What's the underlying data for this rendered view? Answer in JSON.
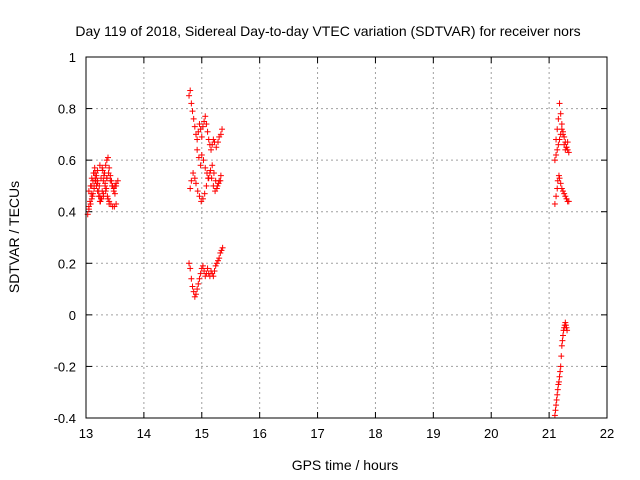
{
  "chart_data": {
    "type": "scatter",
    "title": "Day 119 of 2018, Sidereal Day-to-day VTEC variation (SDTVAR) for receiver nors",
    "xlabel": "GPS time / hours",
    "ylabel": "SDTVAR / TECUs",
    "xlim": [
      13,
      22
    ],
    "ylim": [
      -0.4,
      1
    ],
    "xticks": [
      "13",
      "14",
      "15",
      "16",
      "17",
      "18",
      "19",
      "20",
      "21",
      "22"
    ],
    "yticks": [
      "-0.4",
      "-0.2",
      "0",
      "0.2",
      "0.4",
      "0.6",
      "0.8",
      "1"
    ],
    "grid": true,
    "marker": "+",
    "color": "#ff0000",
    "series": [
      {
        "name": "SDTVAR",
        "x": [
          13.03,
          13.05,
          13.07,
          13.09,
          13.1,
          13.12,
          13.14,
          13.16,
          13.18,
          13.2,
          13.22,
          13.24,
          13.26,
          13.28,
          13.3,
          13.32,
          13.34,
          13.36,
          13.38,
          13.4,
          13.42,
          13.44,
          13.46,
          13.48,
          13.5,
          13.52,
          13.55,
          13.05,
          13.08,
          13.1,
          13.13,
          13.15,
          13.17,
          13.2,
          13.23,
          13.26,
          13.29,
          13.31,
          13.33,
          13.35,
          13.37,
          13.4,
          13.43,
          13.46,
          13.49,
          13.52,
          13.1,
          13.12,
          13.14,
          13.16,
          13.18,
          13.2,
          13.22,
          13.24,
          13.27,
          13.3,
          13.33,
          13.36,
          13.39,
          13.42,
          13.45,
          13.48,
          13.5,
          13.52,
          13.2,
          13.24,
          13.28,
          13.32,
          13.36,
          13.25,
          13.3,
          13.34,
          13.38,
          13.4,
          13.05,
          13.08,
          13.11,
          13.14,
          13.17,
          14.78,
          14.8,
          14.82,
          14.84,
          14.86,
          14.88,
          14.9,
          14.92,
          14.94,
          14.96,
          14.98,
          15.0,
          15.02,
          15.04,
          15.06,
          15.08,
          15.1,
          15.12,
          15.14,
          15.16,
          15.18,
          15.2,
          15.22,
          15.25,
          15.28,
          15.3,
          15.33,
          15.35,
          14.92,
          14.95,
          14.98,
          15.0,
          15.03,
          15.06,
          15.09,
          15.12,
          15.15,
          15.18,
          15.21,
          15.24,
          15.27,
          15.3,
          15.33,
          14.8,
          14.82,
          14.85,
          14.88,
          14.9,
          14.93,
          14.96,
          14.99,
          15.02,
          15.05,
          15.08,
          15.11,
          15.14,
          15.17,
          15.2,
          15.23,
          15.26,
          15.29,
          15.32,
          14.78,
          14.8,
          14.82,
          14.84,
          14.86,
          14.88,
          14.9,
          14.92,
          14.94,
          14.96,
          14.98,
          15.0,
          15.02,
          15.04,
          15.06,
          15.08,
          15.1,
          15.12,
          15.14,
          15.16,
          15.18,
          15.2,
          15.22,
          15.24,
          15.26,
          15.28,
          15.3,
          15.32,
          15.34,
          15.36,
          21.1,
          21.12,
          21.14,
          21.15,
          21.17,
          21.18,
          21.2,
          21.22,
          21.24,
          21.26,
          21.28,
          21.3,
          21.32,
          21.34,
          21.12,
          21.14,
          21.16,
          21.18,
          21.2,
          21.22,
          21.24,
          21.26,
          21.28,
          21.3,
          21.32,
          21.1,
          21.12,
          21.14,
          21.16,
          21.18,
          21.2,
          21.22,
          21.24,
          21.26,
          21.28,
          21.3,
          21.32,
          21.34,
          21.1,
          21.11,
          21.12,
          21.13,
          21.14,
          21.15,
          21.16,
          21.17,
          21.18,
          21.19,
          21.2,
          21.21,
          21.22,
          21.23,
          21.24,
          21.25,
          21.26,
          21.27,
          21.28,
          21.29,
          21.3,
          21.31
        ],
        "y": [
          0.39,
          0.42,
          0.44,
          0.47,
          0.5,
          0.52,
          0.55,
          0.53,
          0.5,
          0.48,
          0.46,
          0.44,
          0.45,
          0.48,
          0.52,
          0.55,
          0.58,
          0.6,
          0.61,
          0.57,
          0.54,
          0.52,
          0.5,
          0.48,
          0.47,
          0.5,
          0.52,
          0.48,
          0.5,
          0.53,
          0.55,
          0.57,
          0.55,
          0.52,
          0.5,
          0.53,
          0.56,
          0.54,
          0.51,
          0.49,
          0.46,
          0.44,
          0.43,
          0.42,
          0.42,
          0.43,
          0.45,
          0.47,
          0.5,
          0.52,
          0.54,
          0.51,
          0.48,
          0.46,
          0.45,
          0.47,
          0.5,
          0.53,
          0.55,
          0.52,
          0.5,
          0.49,
          0.5,
          0.51,
          0.56,
          0.58,
          0.57,
          0.55,
          0.53,
          0.44,
          0.46,
          0.48,
          0.45,
          0.43,
          0.41,
          0.43,
          0.46,
          0.49,
          0.52,
          0.85,
          0.87,
          0.82,
          0.79,
          0.76,
          0.73,
          0.7,
          0.68,
          0.71,
          0.74,
          0.72,
          0.69,
          0.73,
          0.75,
          0.77,
          0.74,
          0.71,
          0.68,
          0.66,
          0.64,
          0.66,
          0.68,
          0.67,
          0.65,
          0.67,
          0.69,
          0.7,
          0.72,
          0.64,
          0.61,
          0.58,
          0.62,
          0.6,
          0.57,
          0.55,
          0.53,
          0.56,
          0.58,
          0.55,
          0.52,
          0.5,
          0.52,
          0.54,
          0.49,
          0.52,
          0.55,
          0.53,
          0.51,
          0.48,
          0.46,
          0.44,
          0.45,
          0.47,
          0.5,
          0.53,
          0.55,
          0.53,
          0.5,
          0.48,
          0.49,
          0.51,
          0.52,
          0.2,
          0.18,
          0.14,
          0.11,
          0.09,
          0.07,
          0.08,
          0.1,
          0.12,
          0.14,
          0.16,
          0.18,
          0.19,
          0.17,
          0.15,
          0.16,
          0.18,
          0.16,
          0.15,
          0.17,
          0.16,
          0.15,
          0.17,
          0.19,
          0.2,
          0.21,
          0.22,
          0.24,
          0.25,
          0.26,
          0.43,
          0.46,
          0.49,
          0.52,
          0.54,
          0.53,
          0.51,
          0.49,
          0.48,
          0.47,
          0.46,
          0.45,
          0.44,
          0.44,
          0.68,
          0.72,
          0.76,
          0.82,
          0.78,
          0.74,
          0.7,
          0.66,
          0.64,
          0.65,
          0.67,
          0.6,
          0.62,
          0.64,
          0.66,
          0.68,
          0.7,
          0.72,
          0.71,
          0.69,
          0.67,
          0.65,
          0.64,
          0.63,
          -0.39,
          -0.37,
          -0.35,
          -0.33,
          -0.31,
          -0.29,
          -0.27,
          -0.26,
          -0.24,
          -0.22,
          -0.2,
          -0.16,
          -0.12,
          -0.1,
          -0.08,
          -0.06,
          -0.05,
          -0.04,
          -0.03,
          -0.04,
          -0.05,
          -0.06
        ]
      }
    ]
  }
}
